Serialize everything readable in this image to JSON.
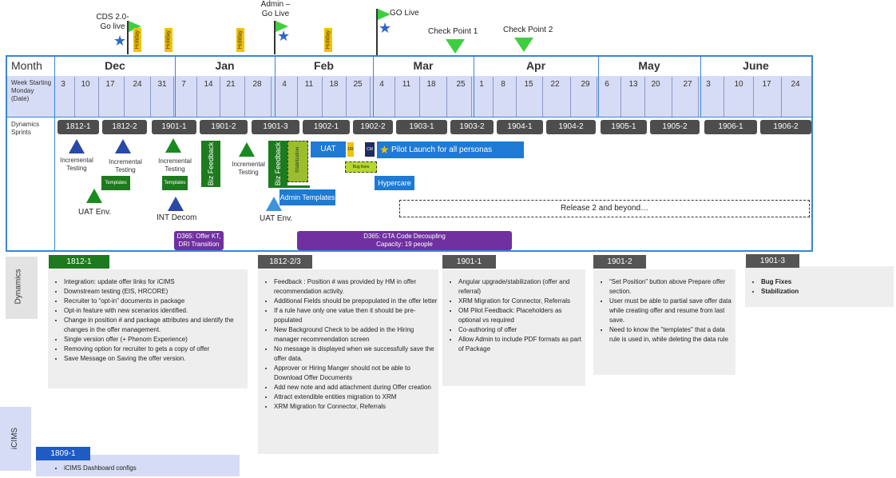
{
  "milestones": {
    "cds": "CDS 2.0-\nGo live",
    "admin": "Admin –\nGo Live",
    "golive": "GO Live",
    "cp1": "Check Point 1",
    "cp2": "Check Point 2",
    "holiday": "Holiday"
  },
  "header": {
    "month_label": "Month",
    "week_label": "Week Starting Monday (Date)",
    "sprints_label": "Dynamics Sprints"
  },
  "months": [
    "Dec",
    "Jan",
    "Feb",
    "Mar",
    "Apr",
    "May",
    "June"
  ],
  "weeks": [
    "3",
    "10",
    "17",
    "24",
    "31",
    "7",
    "14",
    "21",
    "28",
    "4",
    "11",
    "18",
    "25",
    "4",
    "11",
    "18",
    "25",
    "1",
    "8",
    "15",
    "22",
    "29",
    "6",
    "13",
    "20",
    "27",
    "3",
    "10",
    "17",
    "24"
  ],
  "sprints": [
    "1812-1",
    "1812-2",
    "1901-1",
    "1901-2",
    "1901-3",
    "1902-1",
    "1902-2",
    "1903-1",
    "1903-2",
    "1904-1",
    "1904-2",
    "1905-1",
    "1905-2",
    "1906-1",
    "1906-2"
  ],
  "events": {
    "incr1": "Incremental Testing",
    "incr2": "Incremental Testing",
    "incr3": "Incremental Testing",
    "incr4": "Incremental Testing",
    "templates1": "Templates",
    "templates2": "Templates",
    "uat_env1": "UAT Env.",
    "uat_env2": "UAT Env.",
    "int_decom": "INT Decom",
    "biz1": "Biz Feedback",
    "biz2": "Biz Feedback",
    "stabilization": "Stabilization",
    "uat": "UAT",
    "dr": "DR",
    "cm": "CM",
    "bug_fixes": "Bug fixes",
    "pilot": "Pilot Launch for all personas",
    "admin_templates": "Admin Templates",
    "hypercare": "Hypercare",
    "release2": "Release 2 and beyond…",
    "d365_offer": "D365: Offer KT, DRI Transition",
    "d365_gta": "D365: GTA Code Decoupling",
    "d365_gta_cap": "Capacity: 19 people"
  },
  "dynamics": {
    "side_label": "Dynamics",
    "panels": [
      {
        "tab": "1812-1",
        "items": [
          "Integration: update offer links for iCIMS",
          "Downstream testing (EIS, HRCORE)",
          "Recruiter to “opt-in” documents in package",
          "Opt-in feature with new scenarios identified.",
          "Change in position # and package attributes and identify the changes in the offer management.",
          "Single version offer (+ Phenom Experience)",
          "Removing option for recruiter to gets a copy of offer",
          "Save Message on Saving the offer version."
        ]
      },
      {
        "tab": "1812-2/3",
        "items": [
          "Feedback : Position # was provided by HM in offer recommendation activity.",
          "Additional Fields should be prepopulated in the offer letter",
          "If a rule have only one value then it should be pre-populated",
          "New Background Check to be added in the Hiring manager recommendation screen",
          "No message is displayed when we successfully save the offer data.",
          "Approver or Hiring Manger should not be able to Download Offer Documents",
          "Add new note and add attachment during Offer creation",
          "Attract extendible entities migration to XRM",
          "XRM Migration for Connector, Referrals"
        ]
      },
      {
        "tab": "1901-1",
        "items": [
          "Angular upgrade/stabilization (offer and referral)",
          "XRM Migration for Connector, Referrals",
          "OM Pilot Feedback: Placeholders as optional vs required",
          "Co-authoring of offer",
          "Allow Admin to include PDF formats as part of Package"
        ]
      },
      {
        "tab": "1901-2",
        "items": [
          "“Set Position” button above Prepare offer section.",
          "User must be able to partial save offer data while creating offer and resume from last save.",
          "Need to know the \"templates\" that a data rule is used in, while deleting the data rule"
        ]
      },
      {
        "tab": "1901-3",
        "items": [
          "Bug Fixes",
          "Stabilization"
        ]
      }
    ]
  },
  "icims": {
    "side_label": "iCIMS",
    "tab": "1809-1",
    "items": [
      "iCIMS Dashboard configs"
    ]
  },
  "colors": {
    "blue_border": "#3a86d1",
    "week_bg": "#d6dcf5",
    "sprint": "#4d4d4d",
    "green": "#1e7a1e",
    "blue": "#1f7ad3",
    "purple": "#7030a0",
    "flag": "#3fce3f",
    "holiday": "#f2c200"
  }
}
